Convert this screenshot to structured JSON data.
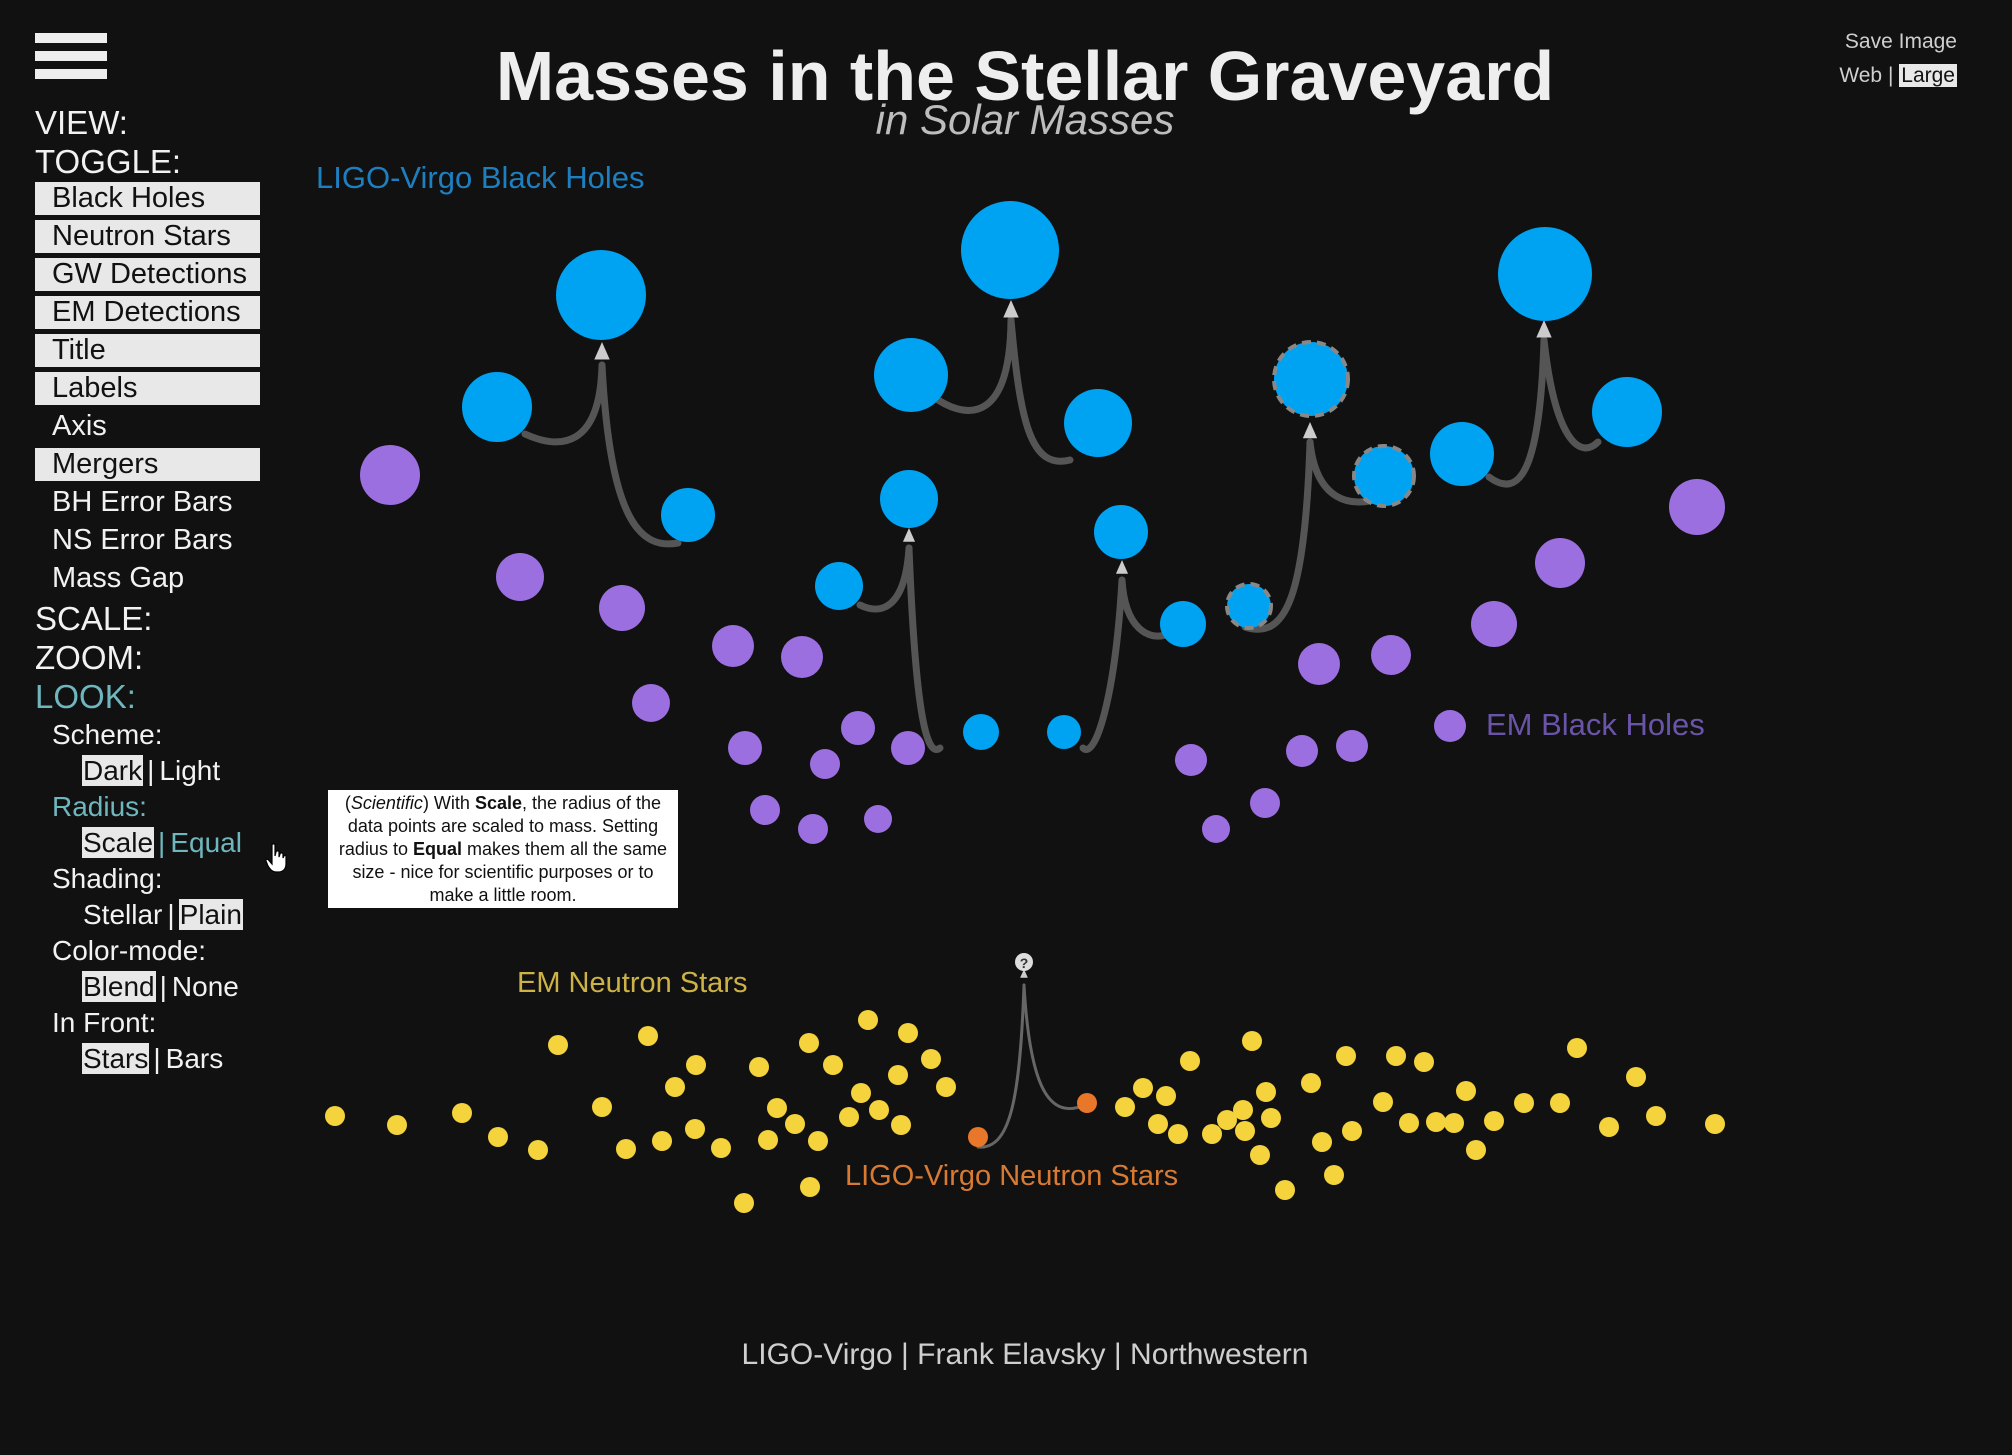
{
  "header": {
    "title": "Masses in the Stellar Graveyard",
    "subtitle": "in Solar Masses"
  },
  "save": {
    "label": "Save Image",
    "web": "Web",
    "separator": "|",
    "large": "Large"
  },
  "menu": {
    "view": "VIEW:",
    "toggle": "TOGGLE:",
    "toggle_items": [
      {
        "label": "Black Holes",
        "on": true
      },
      {
        "label": "Neutron Stars",
        "on": true
      },
      {
        "label": "GW Detections",
        "on": true
      },
      {
        "label": "EM Detections",
        "on": true
      },
      {
        "label": "Title",
        "on": true
      },
      {
        "label": "Labels",
        "on": true
      },
      {
        "label": "Axis",
        "on": false
      },
      {
        "label": "Mergers",
        "on": true
      },
      {
        "label": "BH Error Bars",
        "on": false
      },
      {
        "label": "NS Error Bars",
        "on": false
      },
      {
        "label": "Mass Gap",
        "on": false
      }
    ],
    "scale": "SCALE:",
    "zoom": "ZOOM:",
    "look": "LOOK:",
    "look_items": {
      "scheme": {
        "label": "Scheme:",
        "options": [
          "Dark",
          "Light"
        ],
        "selected": "Dark"
      },
      "radius": {
        "label": "Radius:",
        "options": [
          "Scale",
          "Equal"
        ],
        "selected": "Scale"
      },
      "shading": {
        "label": "Shading:",
        "options": [
          "Stellar",
          "Plain"
        ],
        "selected": "Plain"
      },
      "color_mode": {
        "label": "Color-mode:",
        "options": [
          "Blend",
          "None"
        ],
        "selected": "Blend"
      },
      "in_front": {
        "label": "In Front:",
        "options": [
          "Stars",
          "Bars"
        ],
        "selected": "Stars"
      }
    }
  },
  "tooltip": {
    "open_paren": "(",
    "scientific": "Scientific",
    "part1": ") With ",
    "scale": "Scale",
    "part2": ", the radius of the data points are scaled to mass. Setting radius to ",
    "equal": "Equal",
    "part3": " makes them all the same size - nice for scientific purposes or to make a little room."
  },
  "labels": {
    "ligo_bh": "LIGO-Virgo Black Holes",
    "em_bh": "EM Black Holes",
    "em_ns": "EM Neutron Stars",
    "ligo_ns": "LIGO-Virgo Neutron Stars",
    "unknown": "?"
  },
  "footer": {
    "credit": "LIGO-Virgo | Frank Elavsky | Northwestern"
  },
  "colors": {
    "background": "#111111",
    "ligo_bh": "#00a2f2",
    "em_bh": "#9b6fe0",
    "em_ns": "#f5d33d",
    "ligo_ns": "#e8772a",
    "merger_line": "#555555",
    "arrow": "#cccccc",
    "look_active": "#6fb7be"
  },
  "icons": {
    "menu": "hamburger-icon",
    "cursor": "hand-pointer-icon"
  }
}
